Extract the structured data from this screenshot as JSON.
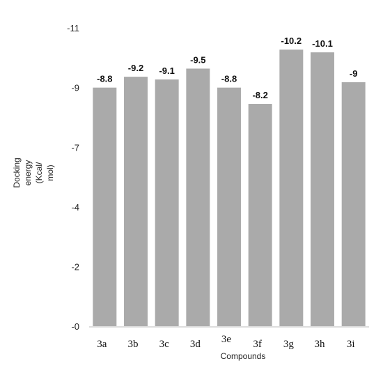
{
  "chart_data": {
    "type": "bar",
    "categories": [
      "3a",
      "3b",
      "3c",
      "3d",
      "3e",
      "3f",
      "3g",
      "3h",
      "3i"
    ],
    "values": [
      -8.8,
      -9.2,
      -9.1,
      -9.5,
      -8.8,
      -8.2,
      -10.2,
      -10.1,
      -9
    ],
    "data_labels": [
      "-8.8",
      "-9.2",
      "-9.1",
      "-9.5",
      "-8.8",
      "-8.2",
      "-10.2",
      "-10.1",
      "-9"
    ],
    "xlabel": "Compounds",
    "ylabel_lines": [
      "Docking",
      "energy",
      "(Kcal/",
      "mol)"
    ],
    "ytick_labels": [
      "-0",
      "-2",
      "-4",
      "-7",
      "-9",
      "-11"
    ],
    "ylim": [
      0,
      -11
    ],
    "grid": false,
    "legend": "none",
    "colors": {
      "bar": "#aaaaaa",
      "baseline": "#dddddd"
    }
  }
}
